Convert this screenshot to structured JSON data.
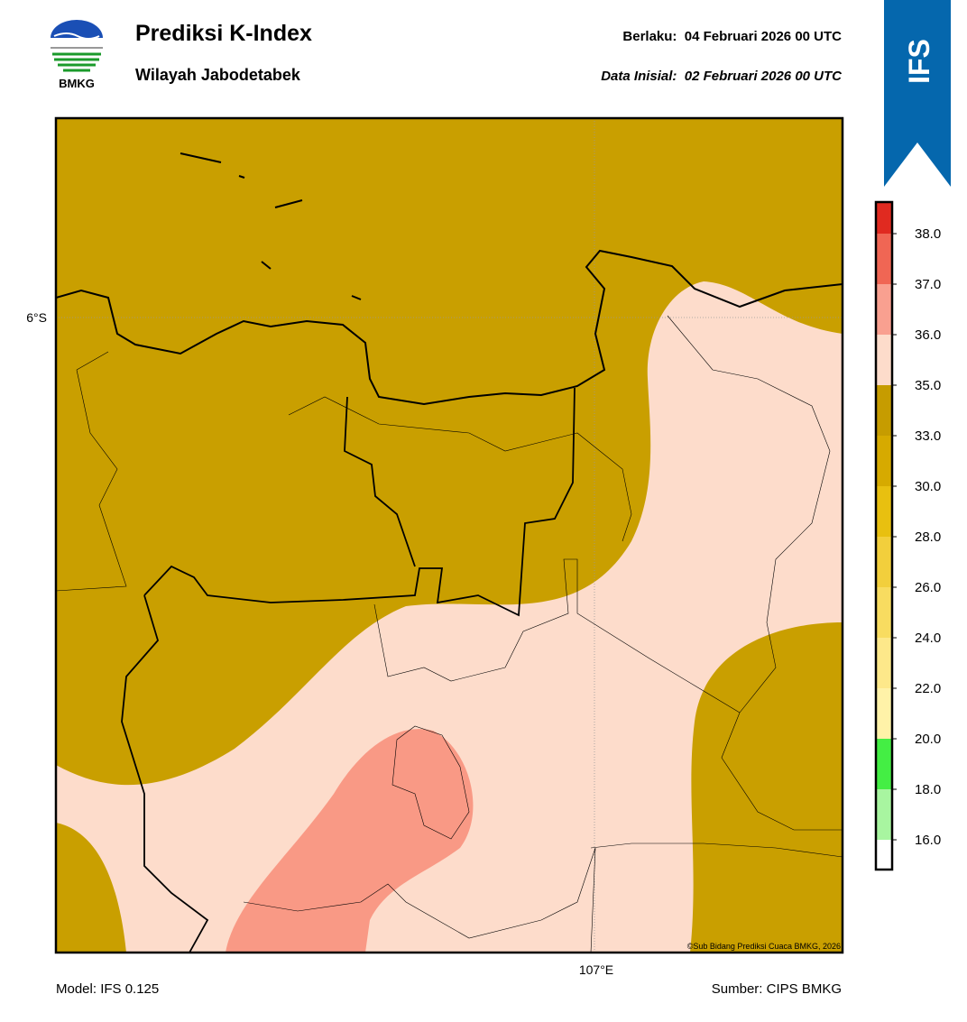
{
  "header": {
    "title": "Prediksi K-Index",
    "subtitle": "Wilayah Jabodetabek",
    "valid": "Berlaku:  04 Februari 2026 00 UTC",
    "init": "Data Inisial:  02 Februari 2026 00 UTC",
    "logo_text": "BMKG",
    "badge": "IFS"
  },
  "map": {
    "lat_label": "6°S",
    "lon_label": "107°E",
    "credit": "©Sub Bidang Prediksi Cuaca BMKG, 2026"
  },
  "footer": {
    "model": "Model: IFS 0.125",
    "source": "Sumber: CIPS BMKG"
  },
  "colorbar": {
    "ticks": [
      "16.0",
      "18.0",
      "20.0",
      "22.0",
      "24.0",
      "26.0",
      "28.0",
      "30.0",
      "33.0",
      "35.0",
      "36.0",
      "37.0",
      "38.0"
    ],
    "colors": [
      "#ffffff",
      "#a8f5a0",
      "#44ee44",
      "#fff2a8",
      "#fde88a",
      "#f8dc60",
      "#f2cf3c",
      "#e8c010",
      "#d6aa00",
      "#c69c00",
      "#fddccb",
      "#f9a090",
      "#f06654",
      "#e02a20"
    ]
  }
}
